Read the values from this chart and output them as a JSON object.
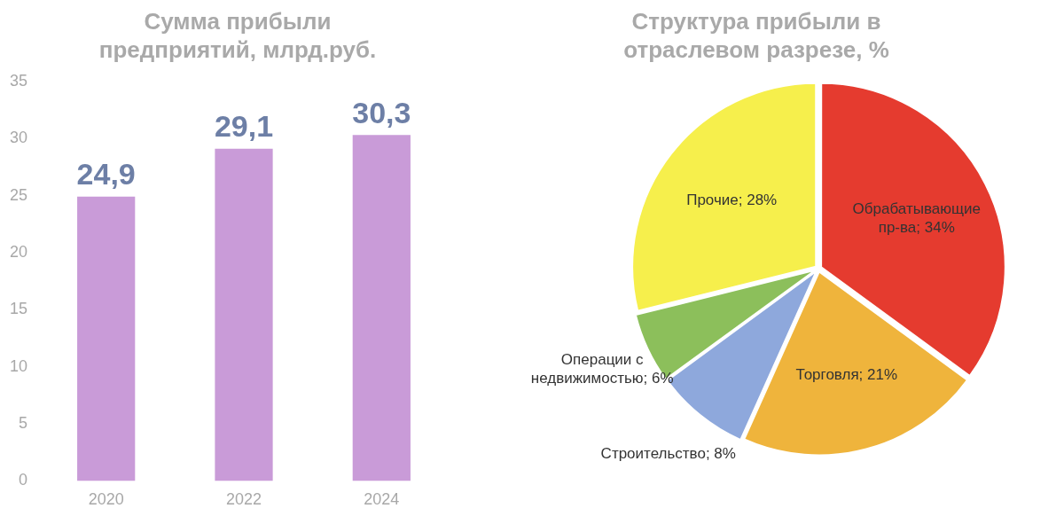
{
  "chart_data": [
    {
      "type": "bar",
      "title": "Сумма прибыли предприятий, млрд.руб.",
      "categories": [
        "2020",
        "2022",
        "2024"
      ],
      "values": [
        24.9,
        29.1,
        30.3
      ],
      "value_labels": [
        "24,9",
        "29,1",
        "30,3"
      ],
      "color": "#c99bd8",
      "ylim": [
        0,
        35
      ],
      "yticks": [
        0,
        5,
        10,
        15,
        20,
        25,
        30,
        35
      ],
      "grid": false,
      "legend": false
    },
    {
      "type": "pie",
      "title": "Структура прибыли в отраслевом разрезе, %",
      "categories": [
        "Обрабатывающие пр-ва",
        "Торговля",
        "Строительство",
        "Операции с недвижимостью",
        "Прочие"
      ],
      "values": [
        34,
        21,
        8,
        6,
        28
      ],
      "value_labels": [
        "34%",
        "21%",
        "8%",
        "6%",
        "28%"
      ],
      "colors": [
        "#e53b2f",
        "#efb43c",
        "#8ea8dc",
        "#8cbf5b",
        "#f6ef4c"
      ],
      "legend": false
    }
  ]
}
